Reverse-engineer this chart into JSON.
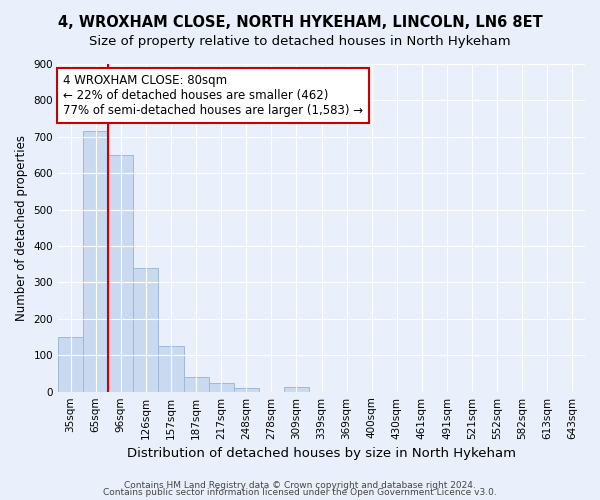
{
  "title1": "4, WROXHAM CLOSE, NORTH HYKEHAM, LINCOLN, LN6 8ET",
  "title2": "Size of property relative to detached houses in North Hykeham",
  "xlabel": "Distribution of detached houses by size in North Hykeham",
  "ylabel": "Number of detached properties",
  "footer1": "Contains HM Land Registry data © Crown copyright and database right 2024.",
  "footer2": "Contains public sector information licensed under the Open Government Licence v3.0.",
  "bar_labels": [
    "35sqm",
    "65sqm",
    "96sqm",
    "126sqm",
    "157sqm",
    "187sqm",
    "217sqm",
    "248sqm",
    "278sqm",
    "309sqm",
    "339sqm",
    "369sqm",
    "400sqm",
    "430sqm",
    "461sqm",
    "491sqm",
    "521sqm",
    "552sqm",
    "582sqm",
    "613sqm",
    "643sqm"
  ],
  "bar_values": [
    150,
    715,
    650,
    340,
    125,
    40,
    25,
    10,
    0,
    12,
    0,
    0,
    0,
    0,
    0,
    0,
    0,
    0,
    0,
    0,
    0
  ],
  "bar_color": "#c8d9f0",
  "bar_edge_color": "#a0b8d8",
  "vline_x": 1.5,
  "vline_color": "#cc0000",
  "annotation_line1": "4 WROXHAM CLOSE: 80sqm",
  "annotation_line2": "← 22% of detached houses are smaller (462)",
  "annotation_line3": "77% of semi-detached houses are larger (1,583) →",
  "annotation_box_color": "#ffffff",
  "annotation_box_edge": "#cc0000",
  "ylim": [
    0,
    900
  ],
  "yticks": [
    0,
    100,
    200,
    300,
    400,
    500,
    600,
    700,
    800,
    900
  ],
  "bg_color": "#eaf0fb",
  "plot_bg_color": "#eaf0fb",
  "title1_fontsize": 10.5,
  "title2_fontsize": 9.5,
  "xlabel_fontsize": 9.5,
  "ylabel_fontsize": 8.5,
  "tick_fontsize": 7.5,
  "annotation_fontsize": 8.5,
  "footer_fontsize": 6.5
}
